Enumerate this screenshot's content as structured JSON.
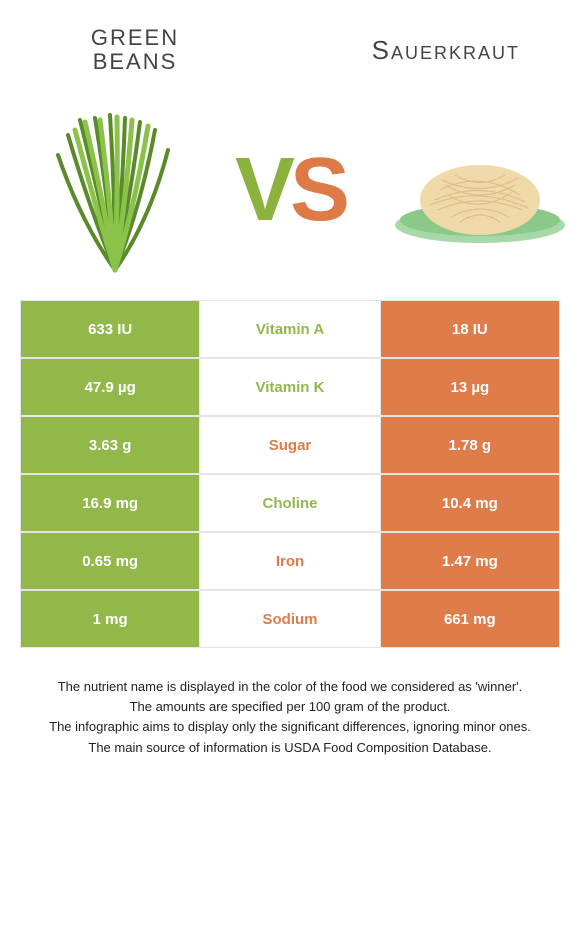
{
  "header": {
    "left_title": "Green Beans",
    "right_title": "Sauerkraut",
    "vs_v": "V",
    "vs_s": "S"
  },
  "colors": {
    "green": "#92b84a",
    "orange": "#e07b4a",
    "mid_bg": "#ffffff",
    "border": "#e5e5e5",
    "text_dark": "#333333"
  },
  "fonts": {
    "title_left_size": 22,
    "title_right_size": 26,
    "vs_size": 90,
    "cell_size": 15,
    "footer_size": 13
  },
  "rows": [
    {
      "left": "633 IU",
      "label": "Vitamin A",
      "right": "18 IU",
      "winner": "left"
    },
    {
      "left": "47.9 µg",
      "label": "Vitamin K",
      "right": "13 µg",
      "winner": "left"
    },
    {
      "left": "3.63 g",
      "label": "Sugar",
      "right": "1.78 g",
      "winner": "right"
    },
    {
      "left": "16.9 mg",
      "label": "Choline",
      "right": "10.4 mg",
      "winner": "left"
    },
    {
      "left": "0.65 mg",
      "label": "Iron",
      "right": "1.47 mg",
      "winner": "right"
    },
    {
      "left": "1 mg",
      "label": "Sodium",
      "right": "661 mg",
      "winner": "right"
    }
  ],
  "footer": {
    "line1": "The nutrient name is displayed in the color of the food we considered as 'winner'.",
    "line2": "The amounts are specified per 100 gram of the product.",
    "line3": "The infographic aims to display only the significant differences, ignoring minor ones.",
    "line4": "The main source of information is USDA Food Composition Database."
  }
}
